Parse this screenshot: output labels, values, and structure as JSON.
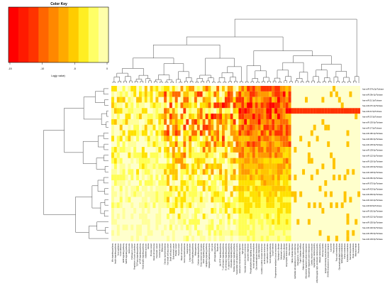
{
  "chart_data": {
    "type": "heatmap",
    "color_key": {
      "title": "Color Key",
      "xlabel": "Log(p value)",
      "ticks": [
        "-15",
        "-10",
        "-5",
        "0"
      ],
      "range": [
        -15,
        0
      ],
      "colors": [
        "#ff0000",
        "#ff1a00",
        "#ff3300",
        "#ff6600",
        "#ff8800",
        "#ffaa00",
        "#ffcc00",
        "#ffee22",
        "#ffff66",
        "#ffffaa"
      ]
    },
    "background_color": "#ffffcc",
    "rows": [
      "hsa-miR-374c-5p/Turbase",
      "hsa-miR-29b-3p/Turbase",
      "hsa-miR-21-3p/Turbase",
      "hsa-miR-27b-3p/Turbase",
      "hsa-miR-21-5p/Turbase",
      "hsa-miR-23-3p/Turbase",
      "hsa-miR-130-5p/Turbase",
      "hsa-miR-17-5p/Turbase",
      "hsa-miR-19b-3p/Turbase",
      "hsa-miR-30b-5p/Turbase",
      "hsa-miR-135-5p/Turbase",
      "hsa-miR-139-5p/Turbase",
      "hsa-miR-122-5p/Turbase",
      "hsa-miR-126-3p/Turbase",
      "hsa-miR-145-5p/Turbase",
      "hsa-miR-148-5p/Turbase",
      "hsa-miR-26b-5p/Turbase",
      "hsa-miR-375-5p/Turbase",
      "hsa-miR-423-5p/Turbase",
      "hsa-miR-484-5p/Turbase",
      "hsa-miR-142-3p/Turbase",
      "hsa-miR-99-5p/Turbase",
      "hsa-miR-181-5p/Turbase",
      "hsa-miR-222-3p/Turbase",
      "hsa-miR-155-5p/Turbase",
      "hsa-miR-192-5p/Turbase",
      "hsa-miR-150-5p/Turbase",
      "hsa-miR-193-5p/Turbase"
    ],
    "columns": [
      "Wnt signaling pathway",
      "Insulin signaling pathway",
      "Axon guidance",
      "Focal adhesion",
      "ErbB signaling pathway",
      "MAPK signaling pathway",
      "Endocytosis",
      "Pathways in cancer",
      "Regulation of actin cytoskeleton",
      "TGF-beta signaling pathway",
      "mTOR signaling pathway",
      "Neurotrophin signaling pathway",
      "Adherens junction",
      "Glioma",
      "Prostate cancer",
      "Renal cell carcinoma",
      "Pancreatic cancer",
      "Colorectal cancer",
      "Melanoma",
      "Chronic myeloid leukemia",
      "Non-small cell lung cancer",
      "Small cell lung cancer",
      "Endometrial cancer",
      "Bladder cancer",
      "Thyroid cancer",
      "Basal cell carcinoma",
      "Acute myeloid leukemia",
      "Gap junction",
      "Long-term potentiation",
      "GnRH signaling pathway",
      "Melanogenesis",
      "Calcium signaling pathway",
      "Dorso-ventral axis formation",
      "VEGF signaling pathway",
      "Hedgehog signaling pathway",
      "Ubiquitin mediated proteolysis",
      "Cell cycle",
      "p53 signaling pathway",
      "Apoptosis",
      "Jak-STAT signaling pathway",
      "T cell receptor signaling pathway",
      "B cell receptor signaling pathway",
      "Fc epsilon RI signaling pathway",
      "Chemokine signaling pathway",
      "Toll-like receptor signaling pathway",
      "Natural killer cell mediated cytotoxicity",
      "Leukocyte transendothelial migration",
      "Tight junction",
      "Vascular smooth muscle contraction",
      "Long-term depression",
      "Phosphatidylinositol signaling system",
      "Inositol phosphate metabolism",
      "Glycosaminoglycan biosynthesis",
      "Lysine degradation",
      "Cytokine-cytokine receptor interaction",
      "ECM-receptor interaction",
      "Cell adhesion molecules",
      "Notch signaling pathway",
      "Oocyte meiosis",
      "Progesterone-mediated oocyte maturation",
      "Huntington's disease",
      "Alzheimer's disease",
      "Parkinson's disease",
      "Amyotrophic lateral sclerosis",
      "Prion diseases",
      "Vibrio cholerae infection",
      "Epithelial cell signaling in H. pylori infection",
      "Pathogenic E. coli infection",
      "Type II diabetes mellitus",
      "Adipocytokine signaling pathway",
      "Aldosterone-regulated sodium reabsorption",
      "Vasopressin-regulated water reabsorption",
      "Cardiac muscle contraction",
      "Hypertrophic cardiomyopathy",
      "Arrhythmogenic right ventricular cardiomyopathy",
      "Dilated cardiomyopathy",
      "Viral myocarditis",
      "Antigen processing and presentation",
      "SNARE interactions in vesicular transport",
      "Lysosome",
      "Peroxisome",
      "Fatty acid metabolism",
      "Glycerophospholipid metabolism",
      "Sphingolipid metabolism",
      "Purine metabolism",
      "Pyrimidine metabolism",
      "Steroid biosynthesis",
      "Biotin metabolism",
      "Mismatch repair",
      "Proteasome"
    ]
  }
}
